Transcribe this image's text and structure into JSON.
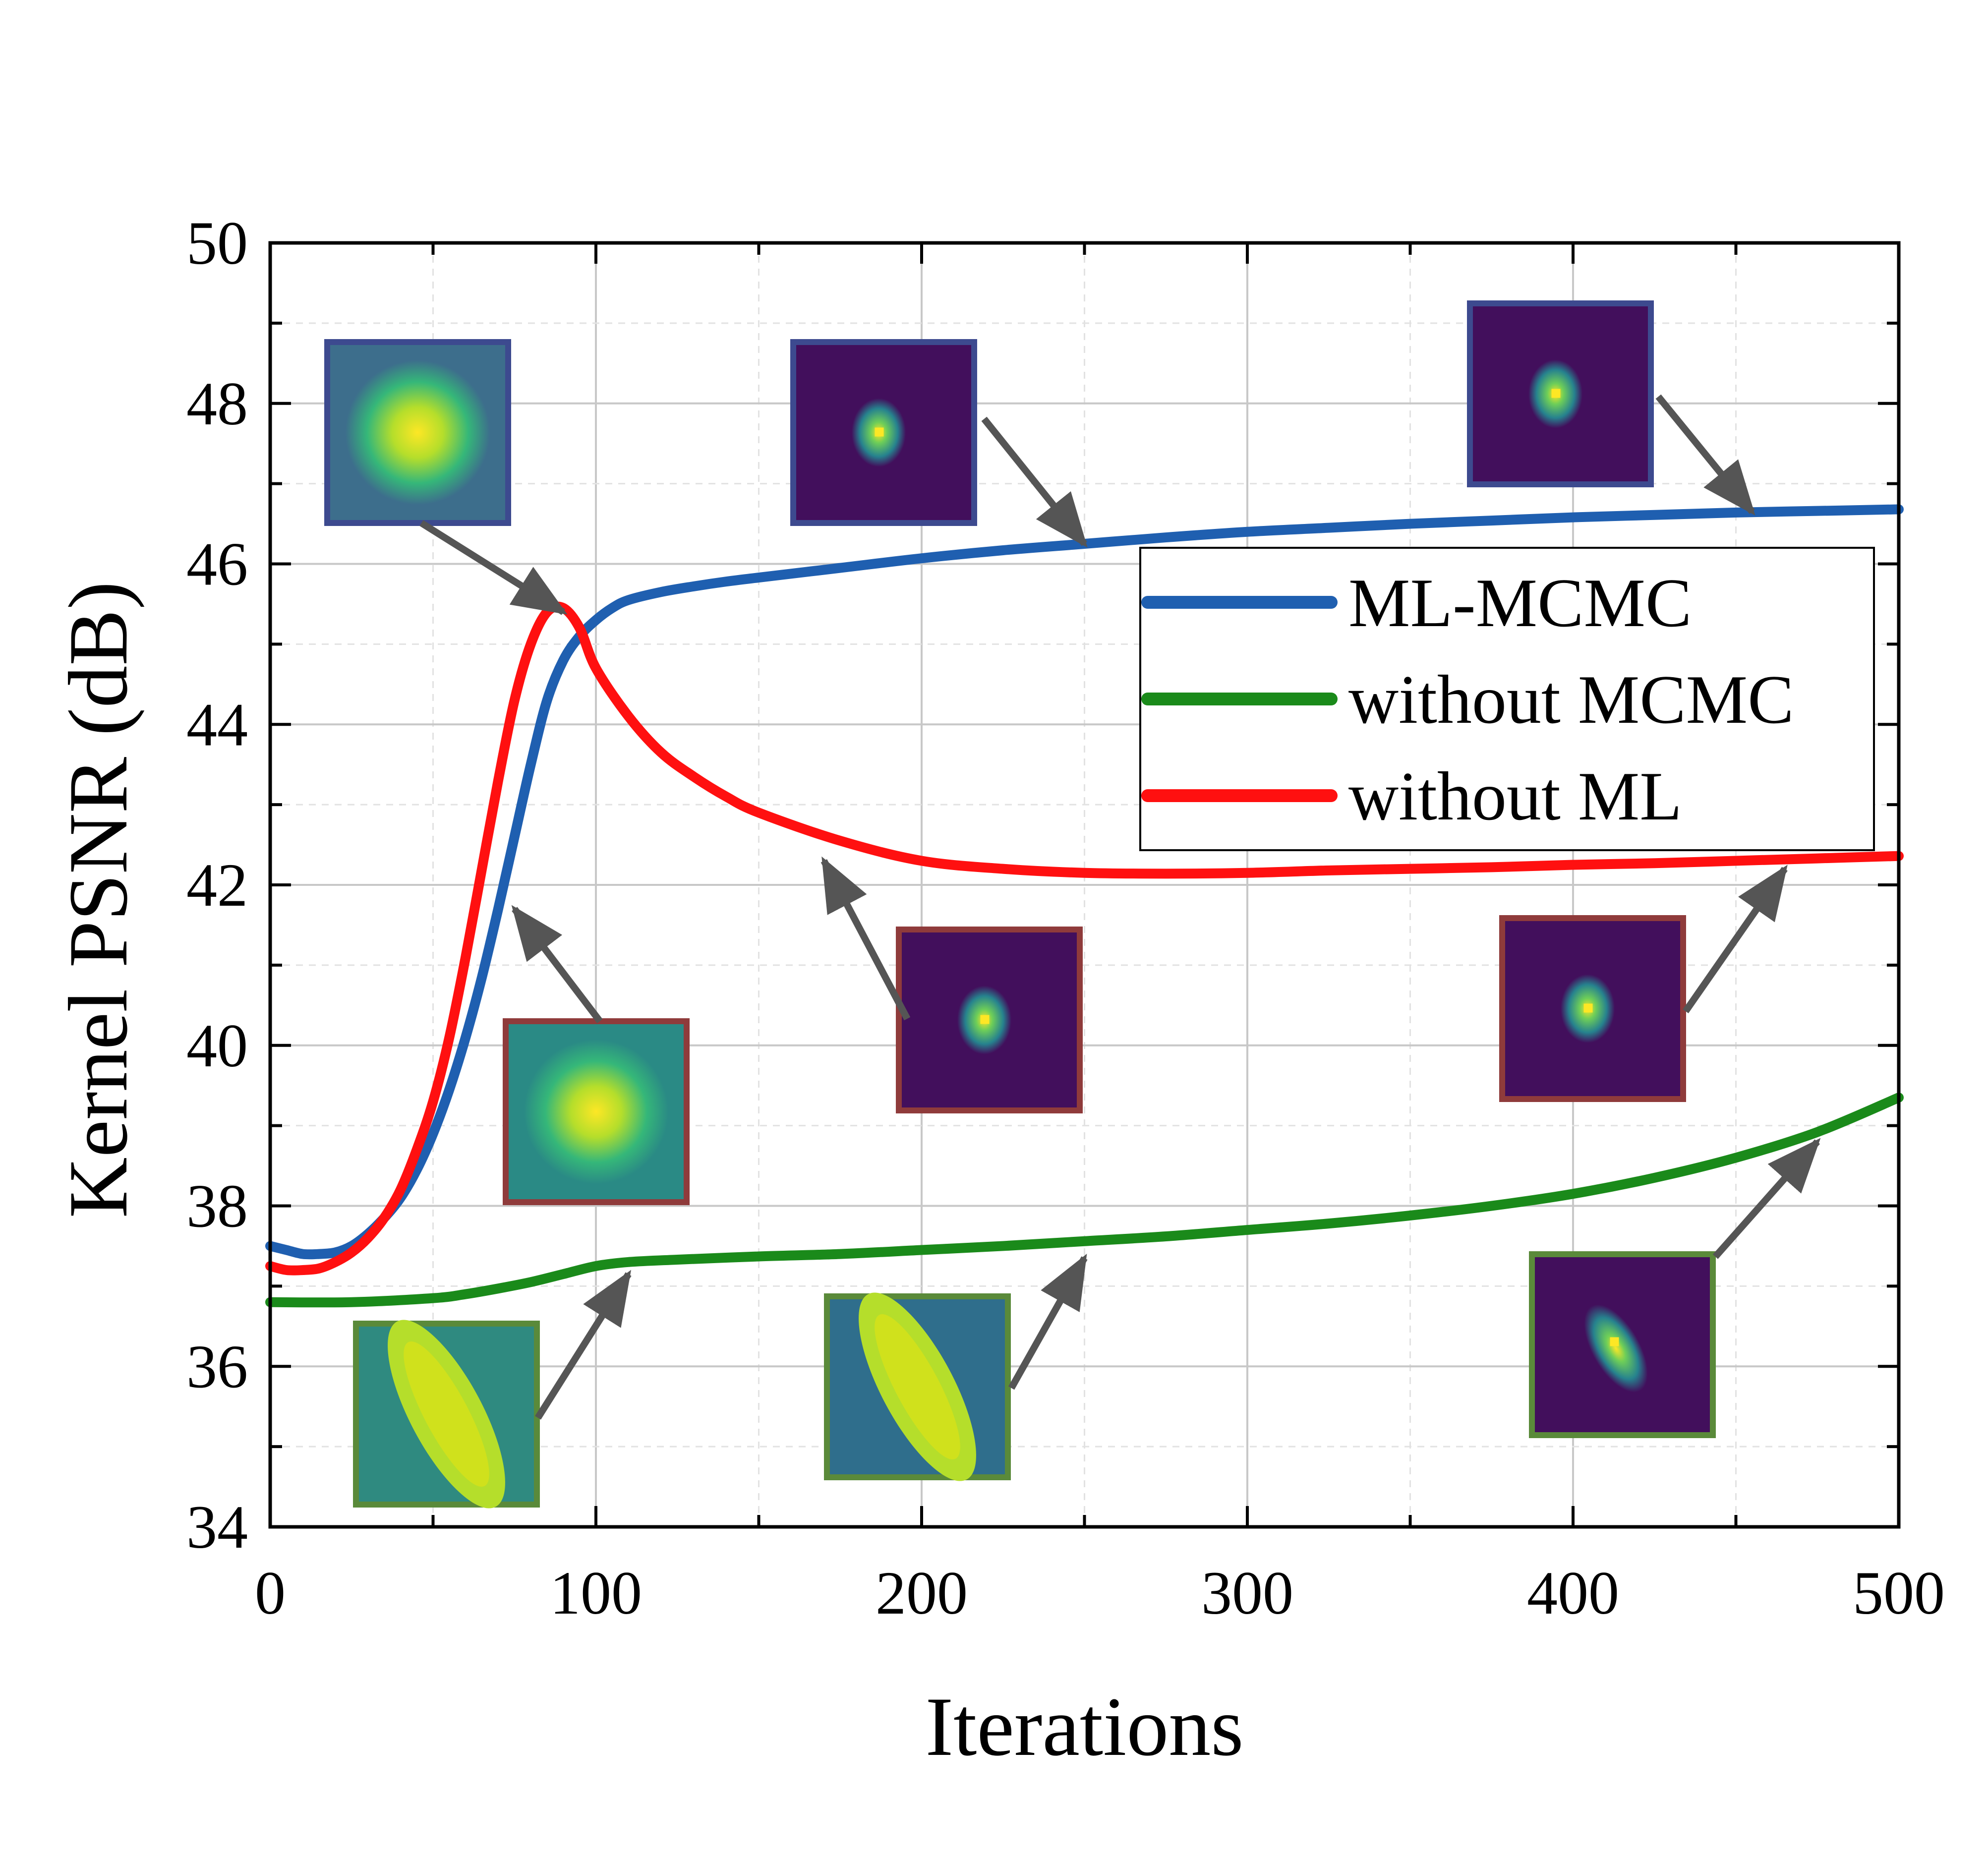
{
  "chart_data": {
    "type": "line",
    "title": "",
    "xlabel": "Iterations",
    "ylabel": "Kernel PSNR (dB)",
    "xlim": [
      0,
      500
    ],
    "ylim": [
      34,
      50
    ],
    "xticks": [
      0,
      100,
      200,
      300,
      400,
      500
    ],
    "yticks": [
      34,
      36,
      38,
      40,
      42,
      44,
      46,
      48,
      50
    ],
    "grid": true,
    "legend_position": "center-right",
    "series": [
      {
        "name": "ML-MCMC",
        "color": "#1f5fb0",
        "x": [
          0,
          5,
          10,
          15,
          20,
          25,
          30,
          35,
          40,
          45,
          50,
          55,
          60,
          65,
          70,
          75,
          80,
          85,
          90,
          95,
          100,
          105,
          110,
          120,
          130,
          140,
          150,
          175,
          200,
          225,
          250,
          275,
          300,
          325,
          350,
          375,
          400,
          425,
          450,
          475,
          500
        ],
        "y": [
          37.5,
          37.45,
          37.4,
          37.4,
          37.42,
          37.5,
          37.65,
          37.85,
          38.1,
          38.45,
          38.9,
          39.45,
          40.1,
          40.85,
          41.7,
          42.6,
          43.5,
          44.3,
          44.8,
          45.1,
          45.3,
          45.45,
          45.55,
          45.65,
          45.72,
          45.78,
          45.83,
          45.95,
          46.07,
          46.17,
          46.25,
          46.33,
          46.4,
          46.45,
          46.5,
          46.54,
          46.58,
          46.61,
          46.64,
          46.66,
          46.68
        ]
      },
      {
        "name": "without MCMC",
        "color": "#1a8a1a",
        "x": [
          0,
          25,
          50,
          60,
          70,
          80,
          90,
          100,
          110,
          125,
          150,
          175,
          200,
          225,
          250,
          275,
          300,
          325,
          350,
          375,
          400,
          425,
          450,
          475,
          500
        ],
        "y": [
          36.8,
          36.8,
          36.85,
          36.9,
          36.97,
          37.05,
          37.15,
          37.25,
          37.3,
          37.33,
          37.37,
          37.4,
          37.45,
          37.5,
          37.56,
          37.62,
          37.7,
          37.78,
          37.88,
          38.0,
          38.15,
          38.35,
          38.6,
          38.92,
          39.35
        ]
      },
      {
        "name": "without ML",
        "color": "#ff1010",
        "x": [
          0,
          5,
          10,
          15,
          20,
          25,
          30,
          35,
          40,
          45,
          50,
          55,
          60,
          65,
          70,
          75,
          80,
          85,
          90,
          95,
          100,
          110,
          120,
          130,
          140,
          150,
          175,
          200,
          225,
          250,
          275,
          300,
          325,
          350,
          375,
          400,
          425,
          450,
          475,
          500
        ],
        "y": [
          37.25,
          37.2,
          37.2,
          37.22,
          37.3,
          37.42,
          37.6,
          37.85,
          38.2,
          38.7,
          39.3,
          40.1,
          41.1,
          42.2,
          43.3,
          44.3,
          45.0,
          45.4,
          45.45,
          45.2,
          44.7,
          44.1,
          43.65,
          43.35,
          43.1,
          42.9,
          42.55,
          42.3,
          42.2,
          42.15,
          42.14,
          42.15,
          42.18,
          42.2,
          42.22,
          42.25,
          42.27,
          42.3,
          42.33,
          42.36
        ]
      }
    ],
    "kernel_insets": [
      {
        "series": "without ML",
        "at_x": 90,
        "at_y": 45.4,
        "frame_color": "#3d4a8f",
        "blob": "wide",
        "bg": "#3d6e8c"
      },
      {
        "series": "ML-MCMC",
        "at_x": 250,
        "at_y": 46.25,
        "frame_color": "#3d4a8f",
        "blob": "small",
        "bg": "#420f5c"
      },
      {
        "series": "ML-MCMC",
        "at_x": 455,
        "at_y": 46.65,
        "frame_color": "#3d4a8f",
        "blob": "small",
        "bg": "#420f5c"
      },
      {
        "series": "without ML",
        "at_x": 75,
        "at_y": 41.7,
        "frame_color": "#8f3b3b",
        "blob": "wide",
        "bg": "#2a8a85"
      },
      {
        "series": "without ML",
        "at_x": 170,
        "at_y": 42.3,
        "frame_color": "#8f3b3b",
        "blob": "small",
        "bg": "#420f5c"
      },
      {
        "series": "without ML",
        "at_x": 465,
        "at_y": 42.2,
        "frame_color": "#8f3b3b",
        "blob": "small",
        "bg": "#420f5c"
      },
      {
        "series": "without MCMC",
        "at_x": 110,
        "at_y": 37.15,
        "frame_color": "#5a8a3a",
        "blob": "elongated",
        "bg": "#2f8a80"
      },
      {
        "series": "without MCMC",
        "at_x": 250,
        "at_y": 37.35,
        "frame_color": "#5a8a3a",
        "blob": "elongated",
        "bg": "#2f6e8c"
      },
      {
        "series": "without MCMC",
        "at_x": 475,
        "at_y": 38.8,
        "frame_color": "#5a8a3a",
        "blob": "tilted",
        "bg": "#420f5c"
      }
    ]
  }
}
